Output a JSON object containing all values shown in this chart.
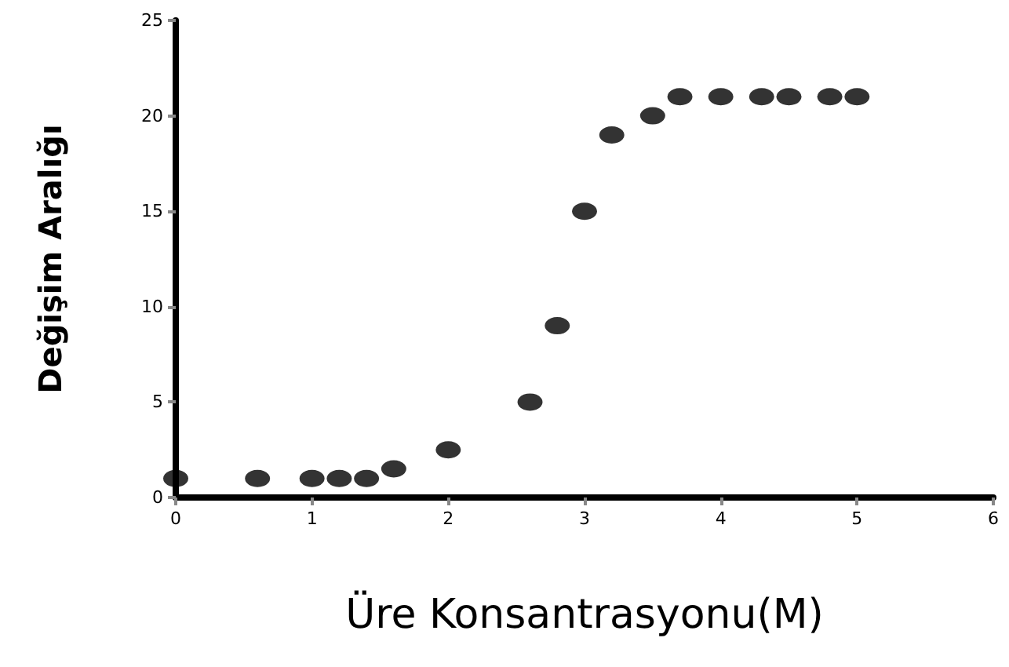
{
  "chart_data": {
    "type": "scatter",
    "xlabel": "Üre Konsantrasyonu(M)",
    "ylabel": "Değişim Aralığı",
    "x": [
      0,
      0.6,
      1,
      1.2,
      1.4,
      1.6,
      2,
      2.6,
      2.8,
      3,
      3.2,
      3.5,
      3.7,
      4,
      4.3,
      4.5,
      4.8,
      5
    ],
    "series": [
      {
        "color": "#000000",
        "values": [
          1,
          1,
          1,
          1,
          1,
          1.5,
          2.5,
          5,
          9,
          15,
          19,
          20,
          21,
          21,
          21,
          21,
          21,
          21
        ]
      }
    ],
    "xlim": [
      0,
      6
    ],
    "xticks": [
      0,
      1,
      2,
      3,
      4,
      5,
      6
    ],
    "ylim": [
      0,
      25
    ],
    "yticks": [
      0,
      5,
      10,
      15,
      20,
      25
    ],
    "grid": false,
    "marker": "circle"
  }
}
